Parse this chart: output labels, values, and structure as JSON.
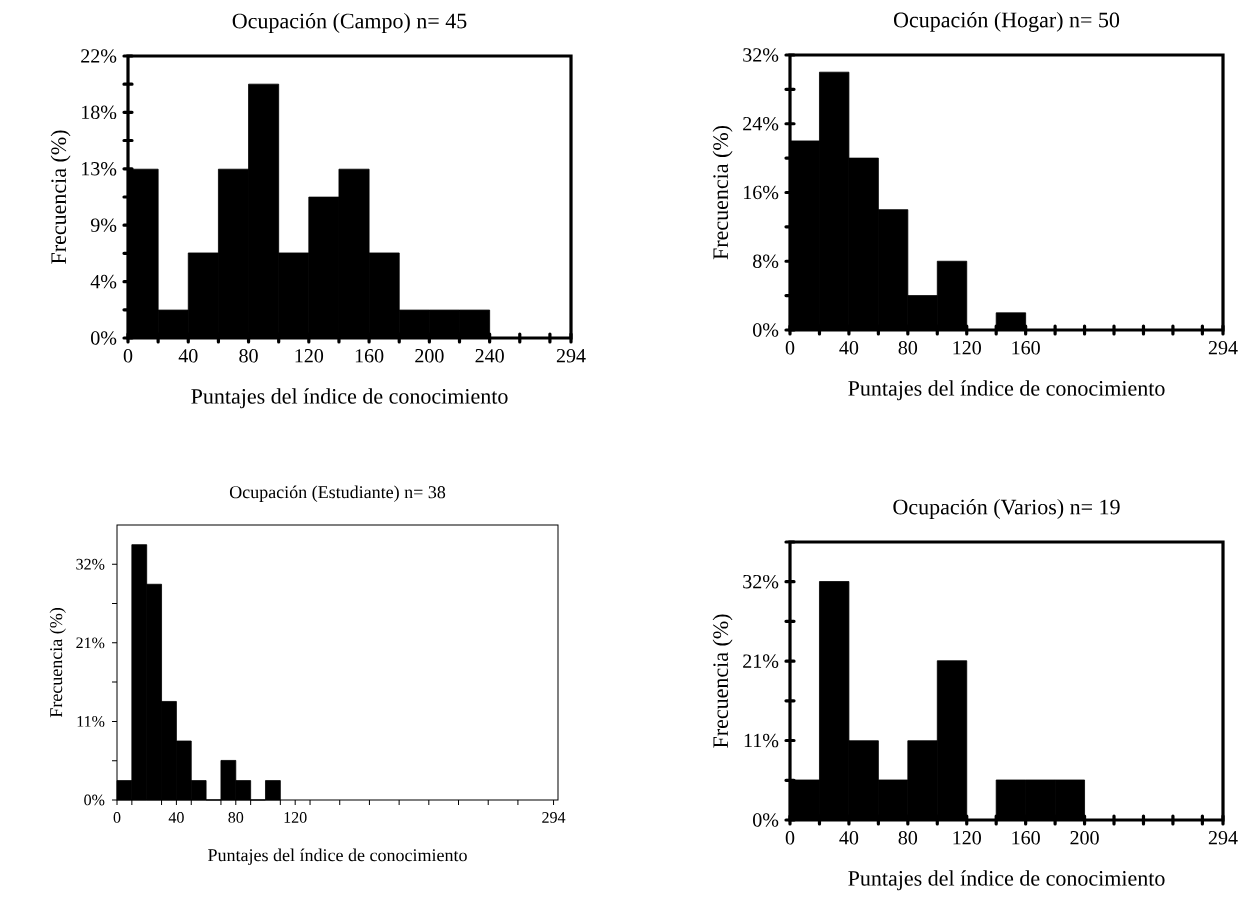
{
  "chart_data": [
    {
      "type": "histogram",
      "title": "Ocupación (Campo) n= 45",
      "xlabel": "Puntajes del índice de conocimiento",
      "ylabel": "Frecuencia (%)",
      "color": "#000000",
      "bins": [
        0,
        20,
        40,
        60,
        80,
        100,
        120,
        140,
        160,
        180,
        200,
        220,
        240,
        260,
        280
      ],
      "values": [
        13.3,
        2.2,
        6.7,
        13.3,
        20,
        6.7,
        11.1,
        13.3,
        6.7,
        2.2,
        2.2,
        2.2,
        0,
        0
      ],
      "xlim": [
        0,
        294
      ],
      "ylim": [
        0,
        22.22
      ],
      "xticks": [
        0,
        {
          "value": 20,
          "label": null
        },
        40,
        {
          "value": 60,
          "label": null
        },
        80,
        {
          "value": 100,
          "label": null
        },
        120,
        {
          "value": 140,
          "label": null
        },
        160,
        {
          "value": 180,
          "label": null
        },
        200,
        {
          "value": 220,
          "label": null
        },
        240,
        {
          "value": 260,
          "label": null
        },
        {
          "value": 280,
          "label": null
        },
        294
      ],
      "yticks": [
        {
          "value": 0,
          "label": "0%"
        },
        {
          "value": 2.22,
          "label": null
        },
        {
          "value": 4.44,
          "label": "4%"
        },
        {
          "value": 6.67,
          "label": null
        },
        {
          "value": 8.89,
          "label": "9%"
        },
        {
          "value": 11.11,
          "label": null
        },
        {
          "value": 13.33,
          "label": "13%"
        },
        {
          "value": 15.56,
          "label": null
        },
        {
          "value": 17.78,
          "label": "18%"
        },
        {
          "value": 20,
          "label": null
        },
        {
          "value": 22.22,
          "label": "22%"
        }
      ]
    },
    {
      "type": "histogram",
      "title": "Ocupación (Hogar) n= 50",
      "xlabel": "Puntajes del índice de conocimiento",
      "ylabel": "Frecuencia (%)",
      "color": "#000000",
      "bins": [
        0,
        20,
        40,
        60,
        80,
        100,
        120,
        140,
        160,
        180,
        200,
        220,
        240,
        260,
        280
      ],
      "values": [
        22,
        30,
        20,
        14,
        4,
        8,
        0,
        2,
        0,
        0,
        0,
        0,
        0,
        0
      ],
      "xlim": [
        0,
        294
      ],
      "ylim": [
        0,
        32
      ],
      "xticks": [
        0,
        {
          "value": 20,
          "label": null
        },
        40,
        {
          "value": 60,
          "label": null
        },
        80,
        {
          "value": 100,
          "label": null
        },
        120,
        {
          "value": 140,
          "label": null
        },
        160,
        {
          "value": 180,
          "label": null
        },
        {
          "value": 200,
          "label": null
        },
        {
          "value": 220,
          "label": null
        },
        {
          "value": 240,
          "label": null
        },
        {
          "value": 260,
          "label": null
        },
        {
          "value": 280,
          "label": null
        },
        294
      ],
      "yticks": [
        {
          "value": 0,
          "label": "0%"
        },
        {
          "value": 4,
          "label": null
        },
        {
          "value": 8,
          "label": "8%"
        },
        {
          "value": 12,
          "label": null
        },
        {
          "value": 16,
          "label": "16%"
        },
        {
          "value": 20,
          "label": null
        },
        {
          "value": 24,
          "label": "24%"
        },
        {
          "value": 28,
          "label": null
        },
        {
          "value": 32,
          "label": "32%"
        }
      ]
    },
    {
      "type": "histogram",
      "title": "Ocupación (Estudiante) n= 38",
      "xlabel": "Puntajes del índice de conocimiento",
      "ylabel": "Frecuencia (%)",
      "color": "#000000",
      "bins": [
        0,
        10,
        20,
        30,
        40,
        50,
        60,
        70,
        80,
        90,
        100,
        110
      ],
      "values": [
        2.6,
        34.2,
        28.9,
        13.2,
        7.9,
        2.6,
        0,
        5.3,
        2.6,
        0,
        2.6
      ],
      "xlim": [
        0,
        297
      ],
      "ylim": [
        0,
        36.84
      ],
      "xticks": [
        0,
        {
          "value": 10,
          "label": null
        },
        {
          "value": 30,
          "label": null
        },
        40,
        {
          "value": 50,
          "label": null
        },
        {
          "value": 70,
          "label": null
        },
        80,
        {
          "value": 90,
          "label": null
        },
        {
          "value": 110,
          "label": null
        },
        120,
        {
          "value": 130,
          "label": null
        },
        {
          "value": 150,
          "label": null
        },
        {
          "value": 170,
          "label": null
        },
        {
          "value": 190,
          "label": null
        },
        {
          "value": 210,
          "label": null
        },
        {
          "value": 230,
          "label": null
        },
        {
          "value": 250,
          "label": null
        },
        {
          "value": 270,
          "label": null
        },
        294
      ],
      "yticks": [
        {
          "value": 0,
          "label": "0%"
        },
        {
          "value": 5.26,
          "label": null
        },
        {
          "value": 10.53,
          "label": "11%"
        },
        {
          "value": 15.79,
          "label": null
        },
        {
          "value": 21.05,
          "label": "21%"
        },
        {
          "value": 26.32,
          "label": null
        },
        {
          "value": 31.58,
          "label": "32%"
        }
      ]
    },
    {
      "type": "histogram",
      "title": "Ocupación (Varios) n= 19",
      "xlabel": "Puntajes del índice de conocimiento",
      "ylabel": "Frecuencia (%)",
      "color": "#000000",
      "bins": [
        0,
        20,
        40,
        60,
        80,
        100,
        120,
        140,
        160,
        180,
        200,
        220,
        240,
        260,
        280
      ],
      "values": [
        5.3,
        31.6,
        10.5,
        5.3,
        10.5,
        21.1,
        0,
        5.3,
        5.3,
        5.3,
        0,
        0,
        0,
        0
      ],
      "xlim": [
        0,
        294
      ],
      "ylim": [
        0,
        36.84
      ],
      "xticks": [
        0,
        {
          "value": 20,
          "label": null
        },
        40,
        {
          "value": 60,
          "label": null
        },
        80,
        {
          "value": 100,
          "label": null
        },
        120,
        {
          "value": 140,
          "label": null
        },
        160,
        {
          "value": 180,
          "label": null
        },
        200,
        {
          "value": 220,
          "label": null
        },
        {
          "value": 240,
          "label": null
        },
        {
          "value": 260,
          "label": null
        },
        {
          "value": 280,
          "label": null
        },
        294
      ],
      "yticks": [
        {
          "value": 0,
          "label": "0%"
        },
        {
          "value": 5.26,
          "label": null
        },
        {
          "value": 10.53,
          "label": "11%"
        },
        {
          "value": 15.79,
          "label": null
        },
        {
          "value": 21.05,
          "label": "21%"
        },
        {
          "value": 26.32,
          "label": null
        },
        {
          "value": 31.58,
          "label": "32%"
        },
        {
          "value": 36.84,
          "label": null
        }
      ]
    }
  ]
}
